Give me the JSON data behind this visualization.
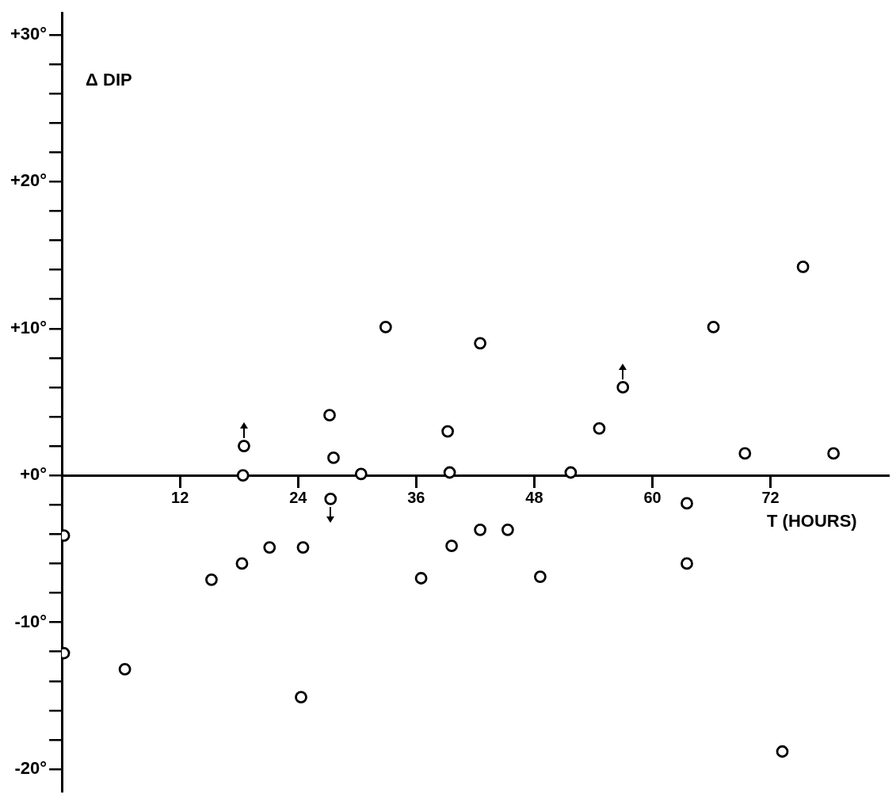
{
  "chart_data": {
    "type": "scatter",
    "ylabel": "Δ DIP",
    "xlabel": "T (HOURS)",
    "marker": "circle",
    "x": [
      0.2,
      0.2,
      6.4,
      15.2,
      18.3,
      18.4,
      18.5,
      21.1,
      24.5,
      24.3,
      27.2,
      27.6,
      27.3,
      30.4,
      32.9,
      36.5,
      39.2,
      39.4,
      39.6,
      42.5,
      42.5,
      45.3,
      48.6,
      51.7,
      54.6,
      57.0,
      63.5,
      63.5,
      66.2,
      69.4,
      73.2,
      75.3,
      78.4
    ],
    "series": [
      {
        "color": "#000000",
        "values": [
          -4.1,
          -12.1,
          -13.2,
          -7.1,
          -6.0,
          0.0,
          2.0,
          -4.9,
          -4.9,
          -15.1,
          4.1,
          1.2,
          -1.6,
          0.1,
          10.1,
          -7.0,
          3.0,
          0.2,
          -4.8,
          9.0,
          -3.7,
          -3.7,
          -6.9,
          0.2,
          3.2,
          6.0,
          -1.9,
          -6.0,
          10.1,
          1.5,
          -18.8,
          14.2,
          1.5
        ]
      }
    ],
    "xlim": [
      0,
      84
    ],
    "xticks": [
      12,
      24,
      36,
      48,
      60,
      72
    ],
    "ylim": [
      -21.5,
      31.5
    ],
    "yticks": [
      {
        "value": -20,
        "label": "-20°"
      },
      {
        "value": -18,
        "label": null
      },
      {
        "value": -16,
        "label": null
      },
      {
        "value": -14,
        "label": null
      },
      {
        "value": -12,
        "label": null
      },
      {
        "value": -10,
        "label": "-10°"
      },
      {
        "value": -8,
        "label": null
      },
      {
        "value": -6,
        "label": null
      },
      {
        "value": -4,
        "label": null
      },
      {
        "value": -2,
        "label": null
      },
      {
        "value": 0,
        "label": "+0°"
      },
      {
        "value": 2,
        "label": null
      },
      {
        "value": 4,
        "label": null
      },
      {
        "value": 6,
        "label": null
      },
      {
        "value": 8,
        "label": null
      },
      {
        "value": 10,
        "label": "+10°"
      },
      {
        "value": 12,
        "label": null
      },
      {
        "value": 14,
        "label": null
      },
      {
        "value": 16,
        "label": null
      },
      {
        "value": 18,
        "label": null
      },
      {
        "value": 20,
        "label": "+20°"
      },
      {
        "value": 22,
        "label": null
      },
      {
        "value": 24,
        "label": null
      },
      {
        "value": 26,
        "label": null
      },
      {
        "value": 28,
        "label": null
      },
      {
        "value": 30,
        "label": "+30°"
      }
    ]
  }
}
